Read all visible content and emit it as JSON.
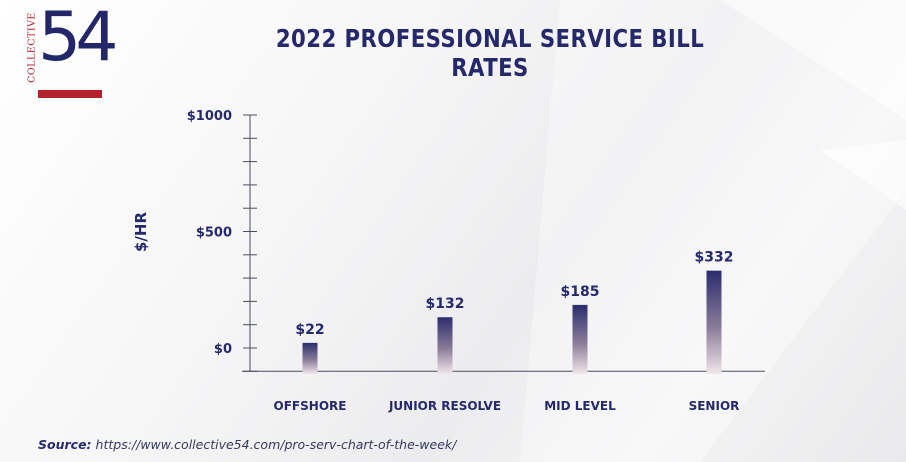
{
  "logo": {
    "word": "COLLECTIVE",
    "number": "54"
  },
  "source": {
    "label": "Source:",
    "url": "https://www.collective54.com/pro-serv-chart-of-the-week/"
  },
  "colors": {
    "navy": "#25296a",
    "red": "#b3212d",
    "bar_top": "#2b2d6e",
    "bar_bottom": "#f1e7ea"
  },
  "chart_data": {
    "type": "bar",
    "title": "2022 PROFESSIONAL SERVICE BILL RATES",
    "ylabel": "$/HR",
    "xlabel": "",
    "categories": [
      "OFFSHORE",
      "JUNIOR RESOLVE",
      "MID LEVEL",
      "SENIOR"
    ],
    "values": [
      22,
      132,
      185,
      332
    ],
    "data_labels": [
      "$22",
      "$132",
      "$185",
      "$332"
    ],
    "ylim": [
      -100,
      1000
    ],
    "yticks": [
      {
        "value": 1000,
        "label": "$1000"
      },
      {
        "value": 500,
        "label": "$500"
      },
      {
        "value": 0,
        "label": "$0"
      }
    ],
    "minor_ticks": [
      -100,
      0,
      100,
      200,
      300,
      400,
      500,
      600,
      700,
      800,
      900,
      1000
    ],
    "grid": false,
    "legend": "none"
  }
}
